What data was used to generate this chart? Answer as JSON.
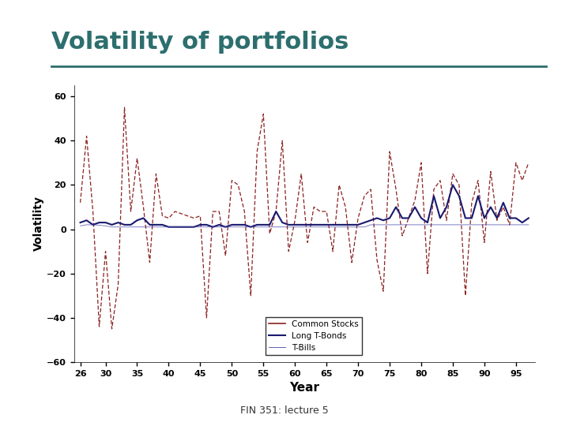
{
  "title": "Volatility of portfolios",
  "title_color": "#2d6e6e",
  "xlabel": "Year",
  "ylabel": "Volatility",
  "footer": "FIN 351: lecture 5",
  "bg_color": "#ffffff",
  "border_color": "#5a8a8a",
  "ylim": [
    -60,
    65
  ],
  "yticks": [
    -60,
    -40,
    -20,
    0,
    20,
    40,
    60
  ],
  "xticks": [
    26,
    30,
    35,
    40,
    45,
    50,
    55,
    60,
    65,
    70,
    75,
    80,
    85,
    90,
    95
  ],
  "xlim": [
    25,
    98
  ],
  "stocks_color": "#8b2020",
  "bonds_color": "#1a1a6e",
  "tbills_color": "#4444aa",
  "years": [
    26,
    27,
    28,
    29,
    30,
    31,
    32,
    33,
    34,
    35,
    36,
    37,
    38,
    39,
    40,
    41,
    42,
    43,
    44,
    45,
    46,
    47,
    48,
    49,
    50,
    51,
    52,
    53,
    54,
    55,
    56,
    57,
    58,
    59,
    60,
    61,
    62,
    63,
    64,
    65,
    66,
    67,
    68,
    69,
    70,
    71,
    72,
    73,
    74,
    75,
    76,
    77,
    78,
    79,
    80,
    81,
    82,
    83,
    84,
    85,
    86,
    87,
    88,
    89,
    90,
    91,
    92,
    93,
    94,
    95,
    96,
    97
  ],
  "stocks_raw": [
    12,
    42,
    8,
    -44,
    -10,
    -45,
    -25,
    55,
    8,
    32,
    10,
    -15,
    25,
    6,
    5,
    8,
    7,
    6,
    5,
    6,
    -40,
    8,
    8,
    -12,
    22,
    20,
    8,
    -30,
    35,
    52,
    -2,
    8,
    40,
    -10,
    4,
    25,
    -6,
    10,
    8,
    8,
    -10,
    20,
    10,
    -15,
    5,
    15,
    18,
    -14,
    -28,
    35,
    18,
    -3,
    5,
    13,
    30,
    -20,
    18,
    22,
    4,
    25,
    20,
    -30,
    12,
    22,
    -6,
    26,
    4,
    10,
    2,
    30,
    22,
    30
  ],
  "bonds_raw": [
    3,
    4,
    2,
    3,
    3,
    2,
    3,
    2,
    2,
    4,
    5,
    2,
    2,
    2,
    1,
    1,
    1,
    1,
    1,
    2,
    2,
    1,
    2,
    1,
    2,
    2,
    2,
    1,
    2,
    2,
    2,
    8,
    3,
    2,
    2,
    2,
    2,
    2,
    2,
    2,
    2,
    2,
    2,
    2,
    2,
    3,
    4,
    5,
    4,
    5,
    10,
    5,
    5,
    10,
    5,
    3,
    15,
    5,
    10,
    20,
    15,
    5,
    5,
    15,
    5,
    10,
    5,
    12,
    5,
    5,
    3,
    5
  ],
  "tbills_raw": [
    1.5,
    2,
    2,
    1.8,
    1.5,
    1,
    1,
    1,
    1,
    1,
    1,
    1,
    1,
    1,
    1,
    1,
    1,
    1,
    1,
    1,
    1,
    1,
    1,
    1,
    1,
    1,
    1,
    1,
    1,
    1,
    1,
    1,
    1,
    1,
    1,
    1,
    1,
    1,
    1,
    1,
    1,
    1,
    1,
    1,
    1,
    1,
    2,
    2,
    2,
    2,
    2,
    2,
    2,
    2,
    2,
    2,
    2,
    2,
    2,
    2,
    2,
    2,
    2,
    2,
    2,
    2,
    2,
    2,
    2,
    2,
    2,
    2
  ]
}
